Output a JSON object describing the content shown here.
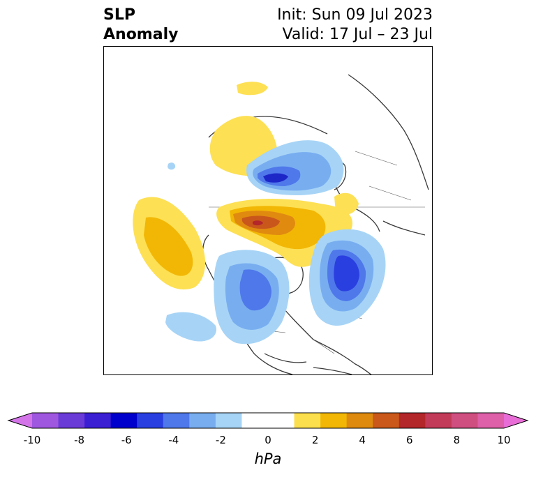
{
  "title": {
    "left_line1": "SLP",
    "left_line2": "Anomaly",
    "right_line1": "Init: Sun 09 Jul 2023",
    "right_line2": "Valid: 17 Jul – 23 Jul"
  },
  "colorbar": {
    "label": "hPa",
    "min": -10,
    "max": 10,
    "ticks": [
      "-10",
      "-8",
      "-6",
      "-4",
      "-2",
      "0",
      "2",
      "4",
      "6",
      "8",
      "10"
    ],
    "colors": [
      "#d374e8",
      "#9f57e0",
      "#6b3bd8",
      "#3a1fd3",
      "#0000cc",
      "#2a3fe0",
      "#4f78ea",
      "#78aef0",
      "#a6d4f7",
      "#ffffff",
      "#ffffff",
      "#fcdf4c",
      "#f2b705",
      "#de8a0f",
      "#c9581a",
      "#b3262a",
      "#c23b59",
      "#cf4f80",
      "#dd60a8",
      "#e86dd6"
    ]
  },
  "palette": {
    "pos1": "#fde054",
    "pos2": "#f2b705",
    "pos3": "#e08a10",
    "pos4": "#c9571b",
    "pos5": "#b3262a",
    "neg1": "#a7d4f6",
    "neg2": "#78aef0",
    "neg3": "#4f78ea",
    "neg4": "#2a3fe0",
    "neg5": "#1d27c8"
  }
}
